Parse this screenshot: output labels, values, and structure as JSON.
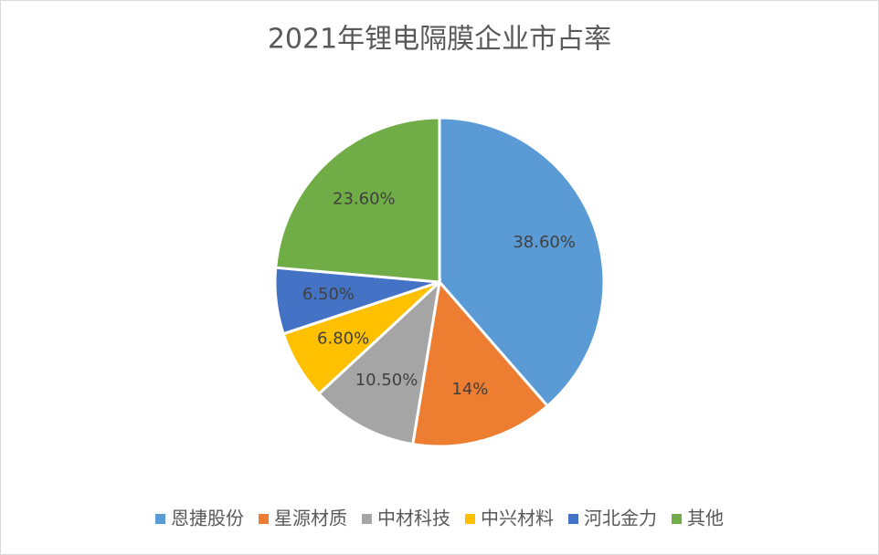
{
  "chart_data": {
    "type": "pie",
    "title": "2021年锂电隔膜企业市占率",
    "categories": [
      "恩捷股份",
      "星源材质",
      "中材科技",
      "中兴材料",
      "河北金力",
      "其他"
    ],
    "values": [
      38.6,
      14,
      10.5,
      6.8,
      6.5,
      23.6
    ],
    "value_labels": [
      "38.60%",
      "14%",
      "10.50%",
      "6.80%",
      "6.50%",
      "23.60%"
    ],
    "colors": [
      "#5b9bd5",
      "#ed7d31",
      "#a5a5a5",
      "#ffc000",
      "#4472c4",
      "#70ad47"
    ],
    "legend": "bottom"
  }
}
